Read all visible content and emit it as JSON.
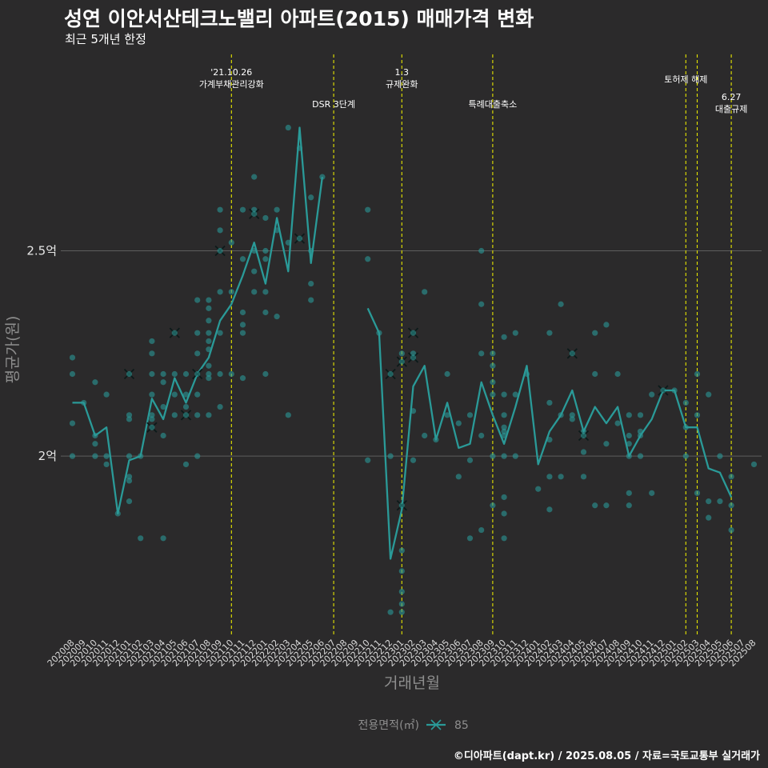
{
  "header": {
    "title": "성연 이안서산테크노밸리 아파트(2015) 매매가격 변화",
    "subtitle": "최근 5개년 한정"
  },
  "footer": {
    "caption": "©디아파트(dapt.kr) / 2025.08.05 / 자료=국토교통부 실거래가"
  },
  "colors": {
    "background": "#2b2a2b",
    "series": "#2a9a98",
    "event_line": "#e6e600",
    "grid": "#5e5e5e"
  },
  "chart_data": {
    "type": "line",
    "title": "성연 이안서산테크노밸리 아파트(2015) 매매가격 변화",
    "subtitle": "최근 5개년 한정",
    "xlabel": "거래년월",
    "ylabel": "평균가(원)",
    "ylim": [
      1.56,
      2.99
    ],
    "y_ticks": [
      {
        "value": 2.0,
        "label": "2억"
      },
      {
        "value": 2.5,
        "label": "2.5억"
      }
    ],
    "grid": true,
    "legend": {
      "title": "전용면적(㎡)",
      "position": "bottom",
      "entries": [
        "85"
      ]
    },
    "categories": [
      "202008",
      "202009",
      "202010",
      "202011",
      "202012",
      "202101",
      "202102",
      "202103",
      "202104",
      "202105",
      "202106",
      "202107",
      "202108",
      "202109",
      "202110",
      "202111",
      "202112",
      "202201",
      "202202",
      "202203",
      "202204",
      "202205",
      "202206",
      "202207",
      "202208",
      "202209",
      "202210",
      "202211",
      "202212",
      "202301",
      "202302",
      "202303",
      "202304",
      "202305",
      "202306",
      "202307",
      "202308",
      "202309",
      "202310",
      "202311",
      "202312",
      "202401",
      "202402",
      "202403",
      "202404",
      "202405",
      "202406",
      "202407",
      "202408",
      "202409",
      "202410",
      "202411",
      "202412",
      "202501",
      "202502",
      "202503",
      "202504",
      "202505",
      "202506",
      "202507",
      "202508"
    ],
    "series": [
      {
        "name": "85",
        "values": [
          2.13,
          2.13,
          2.05,
          2.07,
          1.86,
          1.99,
          2.0,
          2.14,
          2.09,
          2.19,
          2.13,
          2.2,
          2.24,
          2.33,
          2.37,
          2.44,
          2.52,
          2.42,
          2.58,
          2.45,
          2.8,
          2.47,
          2.68,
          null,
          null,
          null,
          2.36,
          2.3,
          1.75,
          1.87,
          2.17,
          2.22,
          2.04,
          2.13,
          2.02,
          2.03,
          2.18,
          2.1,
          2.03,
          2.12,
          2.22,
          1.98,
          2.06,
          2.1,
          2.16,
          2.06,
          2.12,
          2.08,
          2.12,
          2.0,
          2.05,
          2.09,
          2.16,
          2.16,
          2.07,
          2.07,
          1.97,
          1.96,
          1.9,
          null,
          null
        ]
      }
    ],
    "points": [
      {
        "x": "202008",
        "y": 2.24
      },
      {
        "x": "202008",
        "y": 2.2
      },
      {
        "x": "202008",
        "y": 2.08
      },
      {
        "x": "202008",
        "y": 2.0
      },
      {
        "x": "202009",
        "y": 2.13
      },
      {
        "x": "202010",
        "y": 2.18
      },
      {
        "x": "202010",
        "y": 2.05
      },
      {
        "x": "202010",
        "y": 2.03
      },
      {
        "x": "202010",
        "y": 2.0
      },
      {
        "x": "202011",
        "y": 2.15
      },
      {
        "x": "202011",
        "y": 2.0
      },
      {
        "x": "202011",
        "y": 1.98
      },
      {
        "x": "202012",
        "y": 1.86
      },
      {
        "x": "202101",
        "y": 2.2,
        "mark": "x"
      },
      {
        "x": "202101",
        "y": 2.1
      },
      {
        "x": "202101",
        "y": 2.09
      },
      {
        "x": "202101",
        "y": 2.0
      },
      {
        "x": "202101",
        "y": 1.95
      },
      {
        "x": "202101",
        "y": 1.94
      },
      {
        "x": "202101",
        "y": 1.89
      },
      {
        "x": "202102",
        "y": 2.0
      },
      {
        "x": "202102",
        "y": 1.8
      },
      {
        "x": "202103",
        "y": 2.28
      },
      {
        "x": "202103",
        "y": 2.25
      },
      {
        "x": "202103",
        "y": 2.2
      },
      {
        "x": "202103",
        "y": 2.15
      },
      {
        "x": "202103",
        "y": 2.1
      },
      {
        "x": "202103",
        "y": 2.09
      },
      {
        "x": "202103",
        "y": 2.07,
        "mark": "x"
      },
      {
        "x": "202104",
        "y": 2.2
      },
      {
        "x": "202104",
        "y": 2.18
      },
      {
        "x": "202104",
        "y": 2.12
      },
      {
        "x": "202104",
        "y": 2.05
      },
      {
        "x": "202104",
        "y": 1.8
      },
      {
        "x": "202105",
        "y": 2.3,
        "mark": "x"
      },
      {
        "x": "202105",
        "y": 2.2
      },
      {
        "x": "202105",
        "y": 2.15
      },
      {
        "x": "202105",
        "y": 2.1
      },
      {
        "x": "202106",
        "y": 2.2
      },
      {
        "x": "202106",
        "y": 2.15
      },
      {
        "x": "202106",
        "y": 2.12
      },
      {
        "x": "202106",
        "y": 2.1,
        "mark": "x"
      },
      {
        "x": "202106",
        "y": 1.98
      },
      {
        "x": "202107",
        "y": 2.38
      },
      {
        "x": "202107",
        "y": 2.3
      },
      {
        "x": "202107",
        "y": 2.25
      },
      {
        "x": "202107",
        "y": 2.2,
        "mark": "x"
      },
      {
        "x": "202107",
        "y": 2.15
      },
      {
        "x": "202107",
        "y": 2.1
      },
      {
        "x": "202107",
        "y": 2.0
      },
      {
        "x": "202108",
        "y": 2.38
      },
      {
        "x": "202108",
        "y": 2.36
      },
      {
        "x": "202108",
        "y": 2.33
      },
      {
        "x": "202108",
        "y": 2.3
      },
      {
        "x": "202108",
        "y": 2.28
      },
      {
        "x": "202108",
        "y": 2.26
      },
      {
        "x": "202108",
        "y": 2.22
      },
      {
        "x": "202108",
        "y": 2.2
      },
      {
        "x": "202108",
        "y": 2.19
      },
      {
        "x": "202108",
        "y": 2.1
      },
      {
        "x": "202109",
        "y": 2.6
      },
      {
        "x": "202109",
        "y": 2.55
      },
      {
        "x": "202109",
        "y": 2.5,
        "mark": "x"
      },
      {
        "x": "202109",
        "y": 2.4
      },
      {
        "x": "202109",
        "y": 2.3
      },
      {
        "x": "202109",
        "y": 2.2
      },
      {
        "x": "202109",
        "y": 2.12
      },
      {
        "x": "202110",
        "y": 2.52
      },
      {
        "x": "202110",
        "y": 2.4
      },
      {
        "x": "202110",
        "y": 2.2
      },
      {
        "x": "202111",
        "y": 2.6
      },
      {
        "x": "202111",
        "y": 2.48
      },
      {
        "x": "202111",
        "y": 2.35
      },
      {
        "x": "202111",
        "y": 2.32
      },
      {
        "x": "202111",
        "y": 2.3
      },
      {
        "x": "202111",
        "y": 2.19
      },
      {
        "x": "202112",
        "y": 2.68
      },
      {
        "x": "202112",
        "y": 2.6
      },
      {
        "x": "202112",
        "y": 2.59,
        "mark": "x"
      },
      {
        "x": "202112",
        "y": 2.5
      },
      {
        "x": "202112",
        "y": 2.45
      },
      {
        "x": "202112",
        "y": 2.4
      },
      {
        "x": "202201",
        "y": 2.58
      },
      {
        "x": "202201",
        "y": 2.5
      },
      {
        "x": "202201",
        "y": 2.48
      },
      {
        "x": "202201",
        "y": 2.4
      },
      {
        "x": "202201",
        "y": 2.35
      },
      {
        "x": "202201",
        "y": 2.2
      },
      {
        "x": "202202",
        "y": 2.6
      },
      {
        "x": "202202",
        "y": 2.55
      },
      {
        "x": "202202",
        "y": 2.34
      },
      {
        "x": "202203",
        "y": 2.8
      },
      {
        "x": "202203",
        "y": 2.52
      },
      {
        "x": "202203",
        "y": 2.1
      },
      {
        "x": "202204",
        "y": 2.75
      },
      {
        "x": "202204",
        "y": 2.53,
        "mark": "x"
      },
      {
        "x": "202205",
        "y": 2.63
      },
      {
        "x": "202205",
        "y": 2.5
      },
      {
        "x": "202205",
        "y": 2.42
      },
      {
        "x": "202205",
        "y": 2.38
      },
      {
        "x": "202206",
        "y": 2.68
      },
      {
        "x": "202210",
        "y": 2.6
      },
      {
        "x": "202210",
        "y": 2.48
      },
      {
        "x": "202210",
        "y": 1.99
      },
      {
        "x": "202211",
        "y": 2.3
      },
      {
        "x": "202212",
        "y": 2.2,
        "mark": "x"
      },
      {
        "x": "202212",
        "y": 2.0
      },
      {
        "x": "202212",
        "y": 1.62
      },
      {
        "x": "202301",
        "y": 2.25
      },
      {
        "x": "202301",
        "y": 2.23,
        "mark": "x"
      },
      {
        "x": "202301",
        "y": 1.88,
        "mark": "x"
      },
      {
        "x": "202301",
        "y": 1.77
      },
      {
        "x": "202301",
        "y": 1.72
      },
      {
        "x": "202301",
        "y": 1.67
      },
      {
        "x": "202301",
        "y": 1.64
      },
      {
        "x": "202301",
        "y": 1.62
      },
      {
        "x": "202302",
        "y": 2.3,
        "mark": "x"
      },
      {
        "x": "202302",
        "y": 2.25
      },
      {
        "x": "202302",
        "y": 2.24,
        "mark": "x"
      },
      {
        "x": "202302",
        "y": 2.11
      },
      {
        "x": "202302",
        "y": 1.99
      },
      {
        "x": "202303",
        "y": 2.4
      },
      {
        "x": "202303",
        "y": 2.05
      },
      {
        "x": "202304",
        "y": 2.04
      },
      {
        "x": "202305",
        "y": 2.2
      },
      {
        "x": "202305",
        "y": 2.1
      },
      {
        "x": "202306",
        "y": 2.08
      },
      {
        "x": "202306",
        "y": 1.95
      },
      {
        "x": "202307",
        "y": 2.1
      },
      {
        "x": "202307",
        "y": 1.99
      },
      {
        "x": "202307",
        "y": 1.8
      },
      {
        "x": "202308",
        "y": 2.5
      },
      {
        "x": "202308",
        "y": 2.37
      },
      {
        "x": "202308",
        "y": 2.25
      },
      {
        "x": "202308",
        "y": 2.05
      },
      {
        "x": "202308",
        "y": 1.82
      },
      {
        "x": "202309",
        "y": 2.25
      },
      {
        "x": "202309",
        "y": 2.22
      },
      {
        "x": "202309",
        "y": 2.18
      },
      {
        "x": "202309",
        "y": 2.15
      },
      {
        "x": "202309",
        "y": 2.0
      },
      {
        "x": "202309",
        "y": 1.88
      },
      {
        "x": "202310",
        "y": 2.29
      },
      {
        "x": "202310",
        "y": 2.15
      },
      {
        "x": "202310",
        "y": 2.1
      },
      {
        "x": "202310",
        "y": 2.07
      },
      {
        "x": "202310",
        "y": 2.06
      },
      {
        "x": "202310",
        "y": 2.05
      },
      {
        "x": "202310",
        "y": 2.0
      },
      {
        "x": "202310",
        "y": 1.9
      },
      {
        "x": "202310",
        "y": 1.86
      },
      {
        "x": "202310",
        "y": 1.8
      },
      {
        "x": "202311",
        "y": 2.3
      },
      {
        "x": "202311",
        "y": 2.15
      },
      {
        "x": "202311",
        "y": 2.0
      },
      {
        "x": "202312",
        "y": 2.2
      },
      {
        "x": "202401",
        "y": 1.92
      },
      {
        "x": "202402",
        "y": 2.3
      },
      {
        "x": "202402",
        "y": 2.13
      },
      {
        "x": "202402",
        "y": 2.04
      },
      {
        "x": "202402",
        "y": 1.95
      },
      {
        "x": "202402",
        "y": 1.87
      },
      {
        "x": "202403",
        "y": 2.37
      },
      {
        "x": "202403",
        "y": 2.1
      },
      {
        "x": "202403",
        "y": 1.95
      },
      {
        "x": "202404",
        "y": 2.25,
        "mark": "x"
      },
      {
        "x": "202404",
        "y": 2.1
      },
      {
        "x": "202404",
        "y": 2.09
      },
      {
        "x": "202405",
        "y": 2.06
      },
      {
        "x": "202405",
        "y": 2.05,
        "mark": "x"
      },
      {
        "x": "202405",
        "y": 2.01
      },
      {
        "x": "202405",
        "y": 1.95
      },
      {
        "x": "202406",
        "y": 2.3
      },
      {
        "x": "202406",
        "y": 2.2
      },
      {
        "x": "202406",
        "y": 1.88
      },
      {
        "x": "202407",
        "y": 2.32
      },
      {
        "x": "202407",
        "y": 2.03
      },
      {
        "x": "202407",
        "y": 1.88
      },
      {
        "x": "202408",
        "y": 2.2
      },
      {
        "x": "202408",
        "y": 2.08
      },
      {
        "x": "202409",
        "y": 2.1
      },
      {
        "x": "202409",
        "y": 2.05
      },
      {
        "x": "202409",
        "y": 2.03
      },
      {
        "x": "202409",
        "y": 2.0
      },
      {
        "x": "202409",
        "y": 1.91
      },
      {
        "x": "202409",
        "y": 1.88
      },
      {
        "x": "202410",
        "y": 2.1
      },
      {
        "x": "202410",
        "y": 2.06
      },
      {
        "x": "202410",
        "y": 2.05
      },
      {
        "x": "202410",
        "y": 2.0
      },
      {
        "x": "202411",
        "y": 2.15
      },
      {
        "x": "202411",
        "y": 1.91
      },
      {
        "x": "202412",
        "y": 2.16,
        "mark": "x"
      },
      {
        "x": "202501",
        "y": 2.16
      },
      {
        "x": "202502",
        "y": 2.13
      },
      {
        "x": "202502",
        "y": 2.07
      },
      {
        "x": "202502",
        "y": 2.0
      },
      {
        "x": "202503",
        "y": 2.2
      },
      {
        "x": "202503",
        "y": 2.1
      },
      {
        "x": "202503",
        "y": 1.91
      },
      {
        "x": "202504",
        "y": 2.15
      },
      {
        "x": "202504",
        "y": 1.89
      },
      {
        "x": "202504",
        "y": 1.85
      },
      {
        "x": "202505",
        "y": 2.0
      },
      {
        "x": "202505",
        "y": 1.89
      },
      {
        "x": "202506",
        "y": 1.95
      },
      {
        "x": "202506",
        "y": 1.88
      },
      {
        "x": "202506",
        "y": 1.82
      },
      {
        "x": "202508",
        "y": 1.98
      }
    ],
    "events": [
      {
        "x": "202110",
        "label": "'21.10.26\n가계부채관리강화",
        "row": 0
      },
      {
        "x": "202207",
        "label": "DSR 3단계",
        "row": 1
      },
      {
        "x": "202301",
        "label": "1.3\n규제완화",
        "row": 0
      },
      {
        "x": "202309",
        "label": "특례대출축소",
        "row": 1
      },
      {
        "x": "202502",
        "label": "토허제 해제",
        "row": 0
      },
      {
        "x": "202503",
        "label": "",
        "row": 0
      },
      {
        "x": "202506",
        "label": "6.27\n대출규제",
        "row": 1
      }
    ]
  }
}
